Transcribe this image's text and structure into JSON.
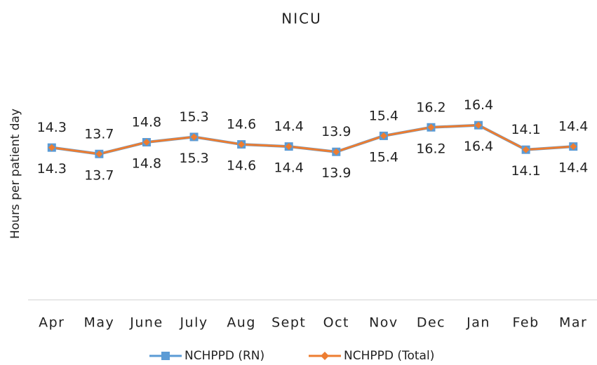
{
  "chart_data": {
    "type": "line",
    "title": "NICU",
    "y_label": "Hours per patient day",
    "categories": [
      "Apr",
      "May",
      "June",
      "July",
      "Aug",
      "Sept",
      "Oct",
      "Nov",
      "Dec",
      "Jan",
      "Feb",
      "Mar"
    ],
    "series": [
      {
        "name": "NCHPPD (RN)",
        "color": "#5b9bd5",
        "marker": "square",
        "values": [
          14.3,
          13.7,
          14.8,
          15.3,
          14.6,
          14.4,
          13.9,
          15.4,
          16.2,
          16.4,
          14.1,
          14.4
        ]
      },
      {
        "name": "NCHPPD (Total)",
        "color": "#ed7d31",
        "marker": "diamond",
        "values": [
          14.3,
          13.7,
          14.8,
          15.3,
          14.6,
          14.4,
          13.9,
          15.4,
          16.2,
          16.4,
          14.1,
          14.4
        ]
      }
    ],
    "ylim": [
      0,
      20
    ],
    "grid": false,
    "legend": "bottom"
  }
}
